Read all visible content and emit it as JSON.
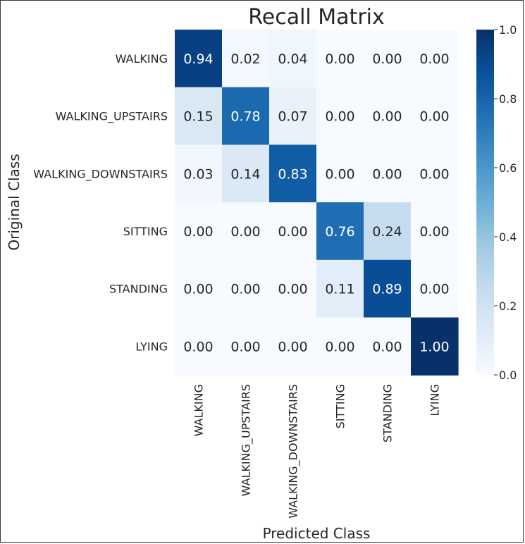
{
  "chart_data": {
    "type": "heatmap",
    "title": "Recall Matrix",
    "xlabel": "Predicted Class",
    "ylabel": "Original Class",
    "x_categories": [
      "WALKING",
      "WALKING_UPSTAIRS",
      "WALKING_DOWNSTAIRS",
      "SITTING",
      "STANDING",
      "LYING"
    ],
    "y_categories": [
      "WALKING",
      "WALKING_UPSTAIRS",
      "WALKING_DOWNSTAIRS",
      "SITTING",
      "STANDING",
      "LYING"
    ],
    "values": [
      [
        0.94,
        0.02,
        0.04,
        0.0,
        0.0,
        0.0
      ],
      [
        0.15,
        0.78,
        0.07,
        0.0,
        0.0,
        0.0
      ],
      [
        0.03,
        0.14,
        0.83,
        0.0,
        0.0,
        0.0
      ],
      [
        0.0,
        0.0,
        0.0,
        0.76,
        0.24,
        0.0
      ],
      [
        0.0,
        0.0,
        0.0,
        0.11,
        0.89,
        0.0
      ],
      [
        0.0,
        0.0,
        0.0,
        0.0,
        0.0,
        1.0
      ]
    ],
    "value_labels": [
      [
        "0.94",
        "0.02",
        "0.04",
        "0.00",
        "0.00",
        "0.00"
      ],
      [
        "0.15",
        "0.78",
        "0.07",
        "0.00",
        "0.00",
        "0.00"
      ],
      [
        "0.03",
        "0.14",
        "0.83",
        "0.00",
        "0.00",
        "0.00"
      ],
      [
        "0.00",
        "0.00",
        "0.00",
        "0.76",
        "0.24",
        "0.00"
      ],
      [
        "0.00",
        "0.00",
        "0.00",
        "0.11",
        "0.89",
        "0.00"
      ],
      [
        "0.00",
        "0.00",
        "0.00",
        "0.00",
        "0.00",
        "1.00"
      ]
    ],
    "colormap": "Blues",
    "vmin": 0.0,
    "vmax": 1.0,
    "colorbar": {
      "ticks": [
        0.0,
        0.2,
        0.4,
        0.6,
        0.8,
        1.0
      ],
      "tick_labels": [
        "0.0",
        "0.2",
        "0.4",
        "0.6",
        "0.8",
        "1.0"
      ]
    },
    "grid": false,
    "legend": "colorbar-right"
  }
}
